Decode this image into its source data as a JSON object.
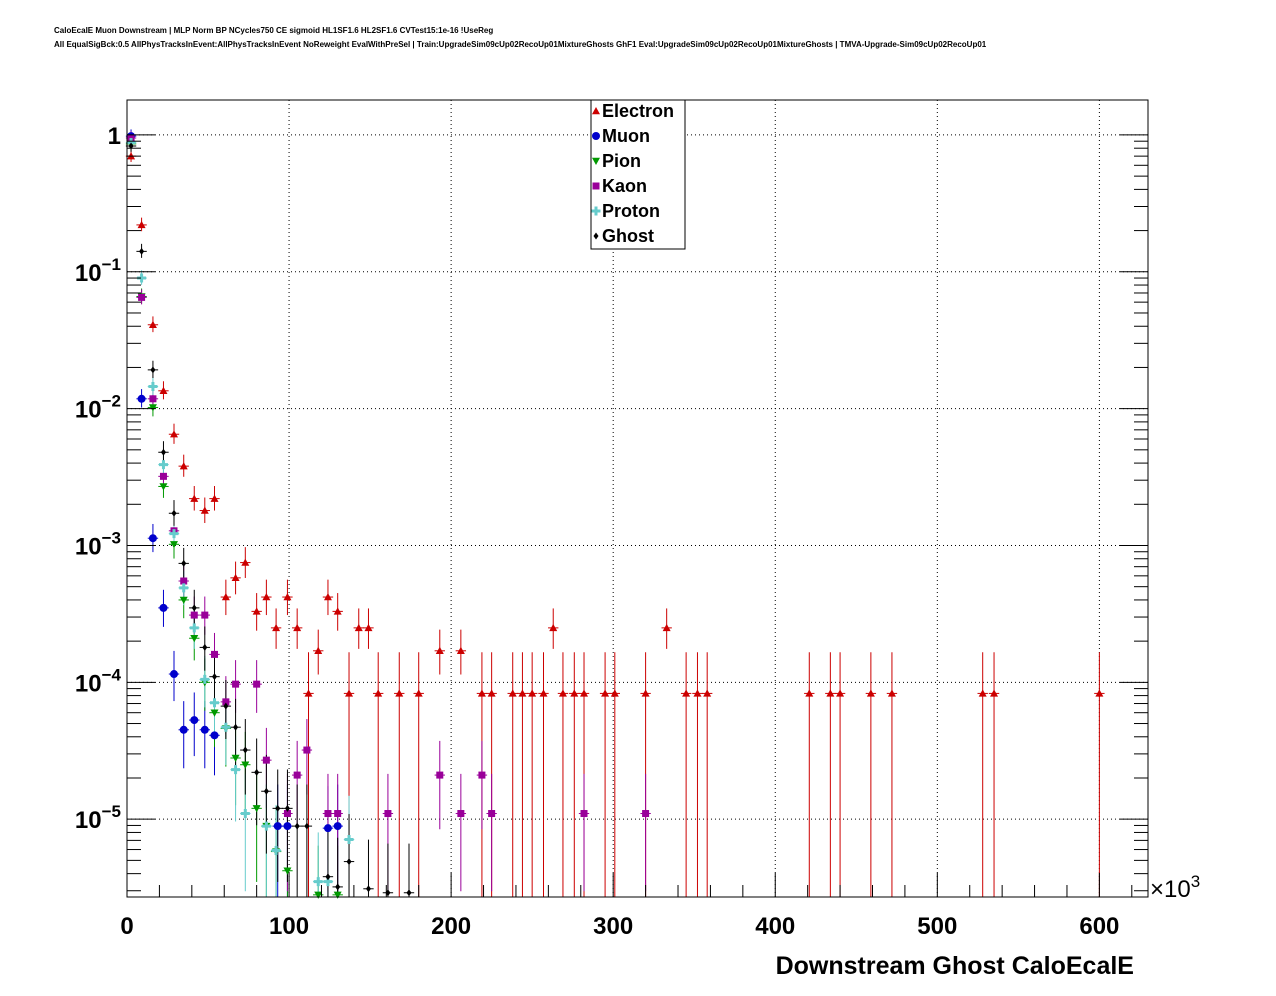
{
  "header": {
    "title_line1": "CaloEcalE Muon Downstream | MLP Norm BP NCycles750 CE sigmoid HL1SF1.6 HL2SF1.6 CVTest15:1e-16 !UseReg",
    "title_line2": "All EqualSigBck:0.5 AllPhysTracksInEvent:AllPhysTracksInEvent NoReweight EvalWithPreSel | Train:UpgradeSim09cUp02RecoUp01MixtureGhosts GhF1 Eval:UpgradeSim09cUp02RecoUp01MixtureGhosts | TMVA-Upgrade-Sim09cUp02RecoUp01"
  },
  "chart_data": {
    "type": "scatter",
    "xlabel": "Downstream Ghost CaloEcalE",
    "x_multiplier_label": "×10",
    "x_multiplier_exp": "3",
    "ylabel": "",
    "xlim": [
      0,
      630
    ],
    "ylim": [
      2.7e-06,
      1.8
    ],
    "yscale": "log",
    "grid": true,
    "legend_position": "top-center",
    "x_ticks": [
      0,
      100,
      200,
      300,
      400,
      500,
      600
    ],
    "y_ticks": [
      {
        "value": 1,
        "base": "1",
        "exp": ""
      },
      {
        "value": 0.1,
        "base": "10",
        "exp": "−1"
      },
      {
        "value": 0.01,
        "base": "10",
        "exp": "−2"
      },
      {
        "value": 0.001,
        "base": "10",
        "exp": "−3"
      },
      {
        "value": 0.0001,
        "base": "10",
        "exp": "−4"
      },
      {
        "value": 1e-05,
        "base": "10",
        "exp": "−5"
      }
    ],
    "series": [
      {
        "name": "Electron",
        "color": "#cc0000",
        "marker": "triangle-up",
        "points": [
          [
            2.5,
            0.7
          ],
          [
            9,
            0.22
          ],
          [
            16,
            0.041
          ],
          [
            22.5,
            0.0135
          ],
          [
            29,
            0.0065
          ],
          [
            35,
            0.0038
          ],
          [
            41.5,
            0.0022
          ],
          [
            48,
            0.0018
          ],
          [
            54,
            0.0022
          ],
          [
            61,
            0.00042
          ],
          [
            67,
            0.00058
          ],
          [
            73,
            0.00075
          ],
          [
            80,
            0.00033
          ],
          [
            86,
            0.00042
          ],
          [
            92,
            0.00025
          ],
          [
            99,
            0.00042
          ],
          [
            105,
            0.00025
          ],
          [
            112,
            8.3e-05
          ],
          [
            118,
            0.00017
          ],
          [
            124,
            0.00042
          ],
          [
            130,
            0.00033
          ],
          [
            137,
            8.3e-05
          ],
          [
            143,
            0.00025
          ],
          [
            149,
            0.00025
          ],
          [
            155,
            8.3e-05
          ],
          [
            168,
            8.3e-05
          ],
          [
            180,
            8.3e-05
          ],
          [
            193,
            0.00017
          ],
          [
            206,
            0.00017
          ],
          [
            219,
            8.3e-05
          ],
          [
            225,
            8.3e-05
          ],
          [
            238,
            8.3e-05
          ],
          [
            244,
            8.3e-05
          ],
          [
            250,
            8.3e-05
          ],
          [
            257,
            8.3e-05
          ],
          [
            263,
            0.00025
          ],
          [
            269,
            8.3e-05
          ],
          [
            276,
            8.3e-05
          ],
          [
            282,
            8.3e-05
          ],
          [
            295,
            8.3e-05
          ],
          [
            301,
            8.3e-05
          ],
          [
            320,
            8.3e-05
          ],
          [
            333,
            0.00025
          ],
          [
            345,
            8.3e-05
          ],
          [
            352,
            8.3e-05
          ],
          [
            358,
            8.3e-05
          ],
          [
            421,
            8.3e-05
          ],
          [
            434,
            8.3e-05
          ],
          [
            440,
            8.3e-05
          ],
          [
            459,
            8.3e-05
          ],
          [
            472,
            8.3e-05
          ],
          [
            528,
            8.3e-05
          ],
          [
            535,
            8.3e-05
          ],
          [
            600,
            8.3e-05
          ]
        ]
      },
      {
        "name": "Muon",
        "color": "#0000cc",
        "marker": "circle",
        "points": [
          [
            2.5,
            0.98
          ],
          [
            9,
            0.0118
          ],
          [
            16,
            0.00113
          ],
          [
            22.5,
            0.00035
          ],
          [
            29,
            0.000115
          ],
          [
            35,
            4.5e-05
          ],
          [
            41.5,
            5.3e-05
          ],
          [
            48,
            4.5e-05
          ],
          [
            54,
            4.1e-05
          ],
          [
            93,
            8.9e-06
          ],
          [
            99,
            8.9e-06
          ],
          [
            124,
            8.6e-06
          ],
          [
            130,
            8.9e-06
          ]
        ]
      },
      {
        "name": "Pion",
        "color": "#009900",
        "marker": "triangle-down",
        "points": [
          [
            2.5,
            0.86
          ],
          [
            9,
            0.066
          ],
          [
            16,
            0.0102
          ],
          [
            22.5,
            0.0027
          ],
          [
            29,
            0.00102
          ],
          [
            35,
            0.0004
          ],
          [
            41.5,
            0.00021
          ],
          [
            48,
            0.0001
          ],
          [
            54,
            6e-05
          ],
          [
            61,
            4.6e-05
          ],
          [
            67,
            2.8e-05
          ],
          [
            73,
            2.5e-05
          ],
          [
            80,
            1.2e-05
          ],
          [
            86,
            8.9e-06
          ],
          [
            92,
            5.8e-06
          ],
          [
            99,
            4.2e-06
          ],
          [
            118,
            2.8e-06
          ],
          [
            130,
            2.8e-06
          ]
        ]
      },
      {
        "name": "Kaon",
        "color": "#990099",
        "marker": "square",
        "points": [
          [
            2.5,
            0.95
          ],
          [
            9,
            0.065
          ],
          [
            16,
            0.0118
          ],
          [
            22.5,
            0.0032
          ],
          [
            29,
            0.00128
          ],
          [
            35,
            0.00055
          ],
          [
            41.5,
            0.00031
          ],
          [
            48,
            0.00031
          ],
          [
            54,
            0.00016
          ],
          [
            61,
            7.2e-05
          ],
          [
            67,
            9.7e-05
          ],
          [
            80,
            9.7e-05
          ],
          [
            86,
            2.7e-05
          ],
          [
            99,
            1.1e-05
          ],
          [
            105,
            2.1e-05
          ],
          [
            111,
            3.2e-05
          ],
          [
            124,
            1.1e-05
          ],
          [
            130,
            1.1e-05
          ],
          [
            161,
            1.1e-05
          ],
          [
            193,
            2.1e-05
          ],
          [
            206,
            1.1e-05
          ],
          [
            219,
            2.1e-05
          ],
          [
            225,
            1.1e-05
          ],
          [
            282,
            1.1e-05
          ],
          [
            320,
            1.1e-05
          ]
        ]
      },
      {
        "name": "Proton",
        "color": "#66cccc",
        "marker": "cross",
        "points": [
          [
            2.5,
            0.88
          ],
          [
            9,
            0.09
          ],
          [
            16,
            0.0145
          ],
          [
            22.5,
            0.0039
          ],
          [
            29,
            0.00122
          ],
          [
            35,
            0.00049
          ],
          [
            41.5,
            0.00025
          ],
          [
            48,
            0.000105
          ],
          [
            54,
            7.1e-05
          ],
          [
            61,
            4.7e-05
          ],
          [
            67,
            2.3e-05
          ],
          [
            73,
            1.1e-05
          ],
          [
            86,
            8.9e-06
          ],
          [
            92,
            5.9e-06
          ],
          [
            118,
            3.5e-06
          ],
          [
            124,
            3.5e-06
          ],
          [
            137,
            7.1e-06
          ]
        ]
      },
      {
        "name": "Ghost",
        "color": "#000000",
        "marker": "diamond",
        "points": [
          [
            2.5,
            0.83
          ],
          [
            9,
            0.141
          ],
          [
            16,
            0.0192
          ],
          [
            22.5,
            0.0048
          ],
          [
            29,
            0.00172
          ],
          [
            35,
            0.00074
          ],
          [
            41.5,
            0.00035
          ],
          [
            48,
            0.00018
          ],
          [
            54,
            0.00011
          ],
          [
            61,
            6.7e-05
          ],
          [
            67,
            4.7e-05
          ],
          [
            73,
            3.2e-05
          ],
          [
            80,
            2.2e-05
          ],
          [
            86,
            1.6e-05
          ],
          [
            93,
            1.2e-05
          ],
          [
            99,
            1.2e-05
          ],
          [
            105,
            8.9e-06
          ],
          [
            111,
            8.9e-06
          ],
          [
            124,
            3.8e-06
          ],
          [
            130,
            3.2e-06
          ],
          [
            137,
            4.9e-06
          ],
          [
            149,
            3.1e-06
          ],
          [
            161,
            2.9e-06
          ],
          [
            174,
            2.9e-06
          ]
        ]
      }
    ]
  }
}
